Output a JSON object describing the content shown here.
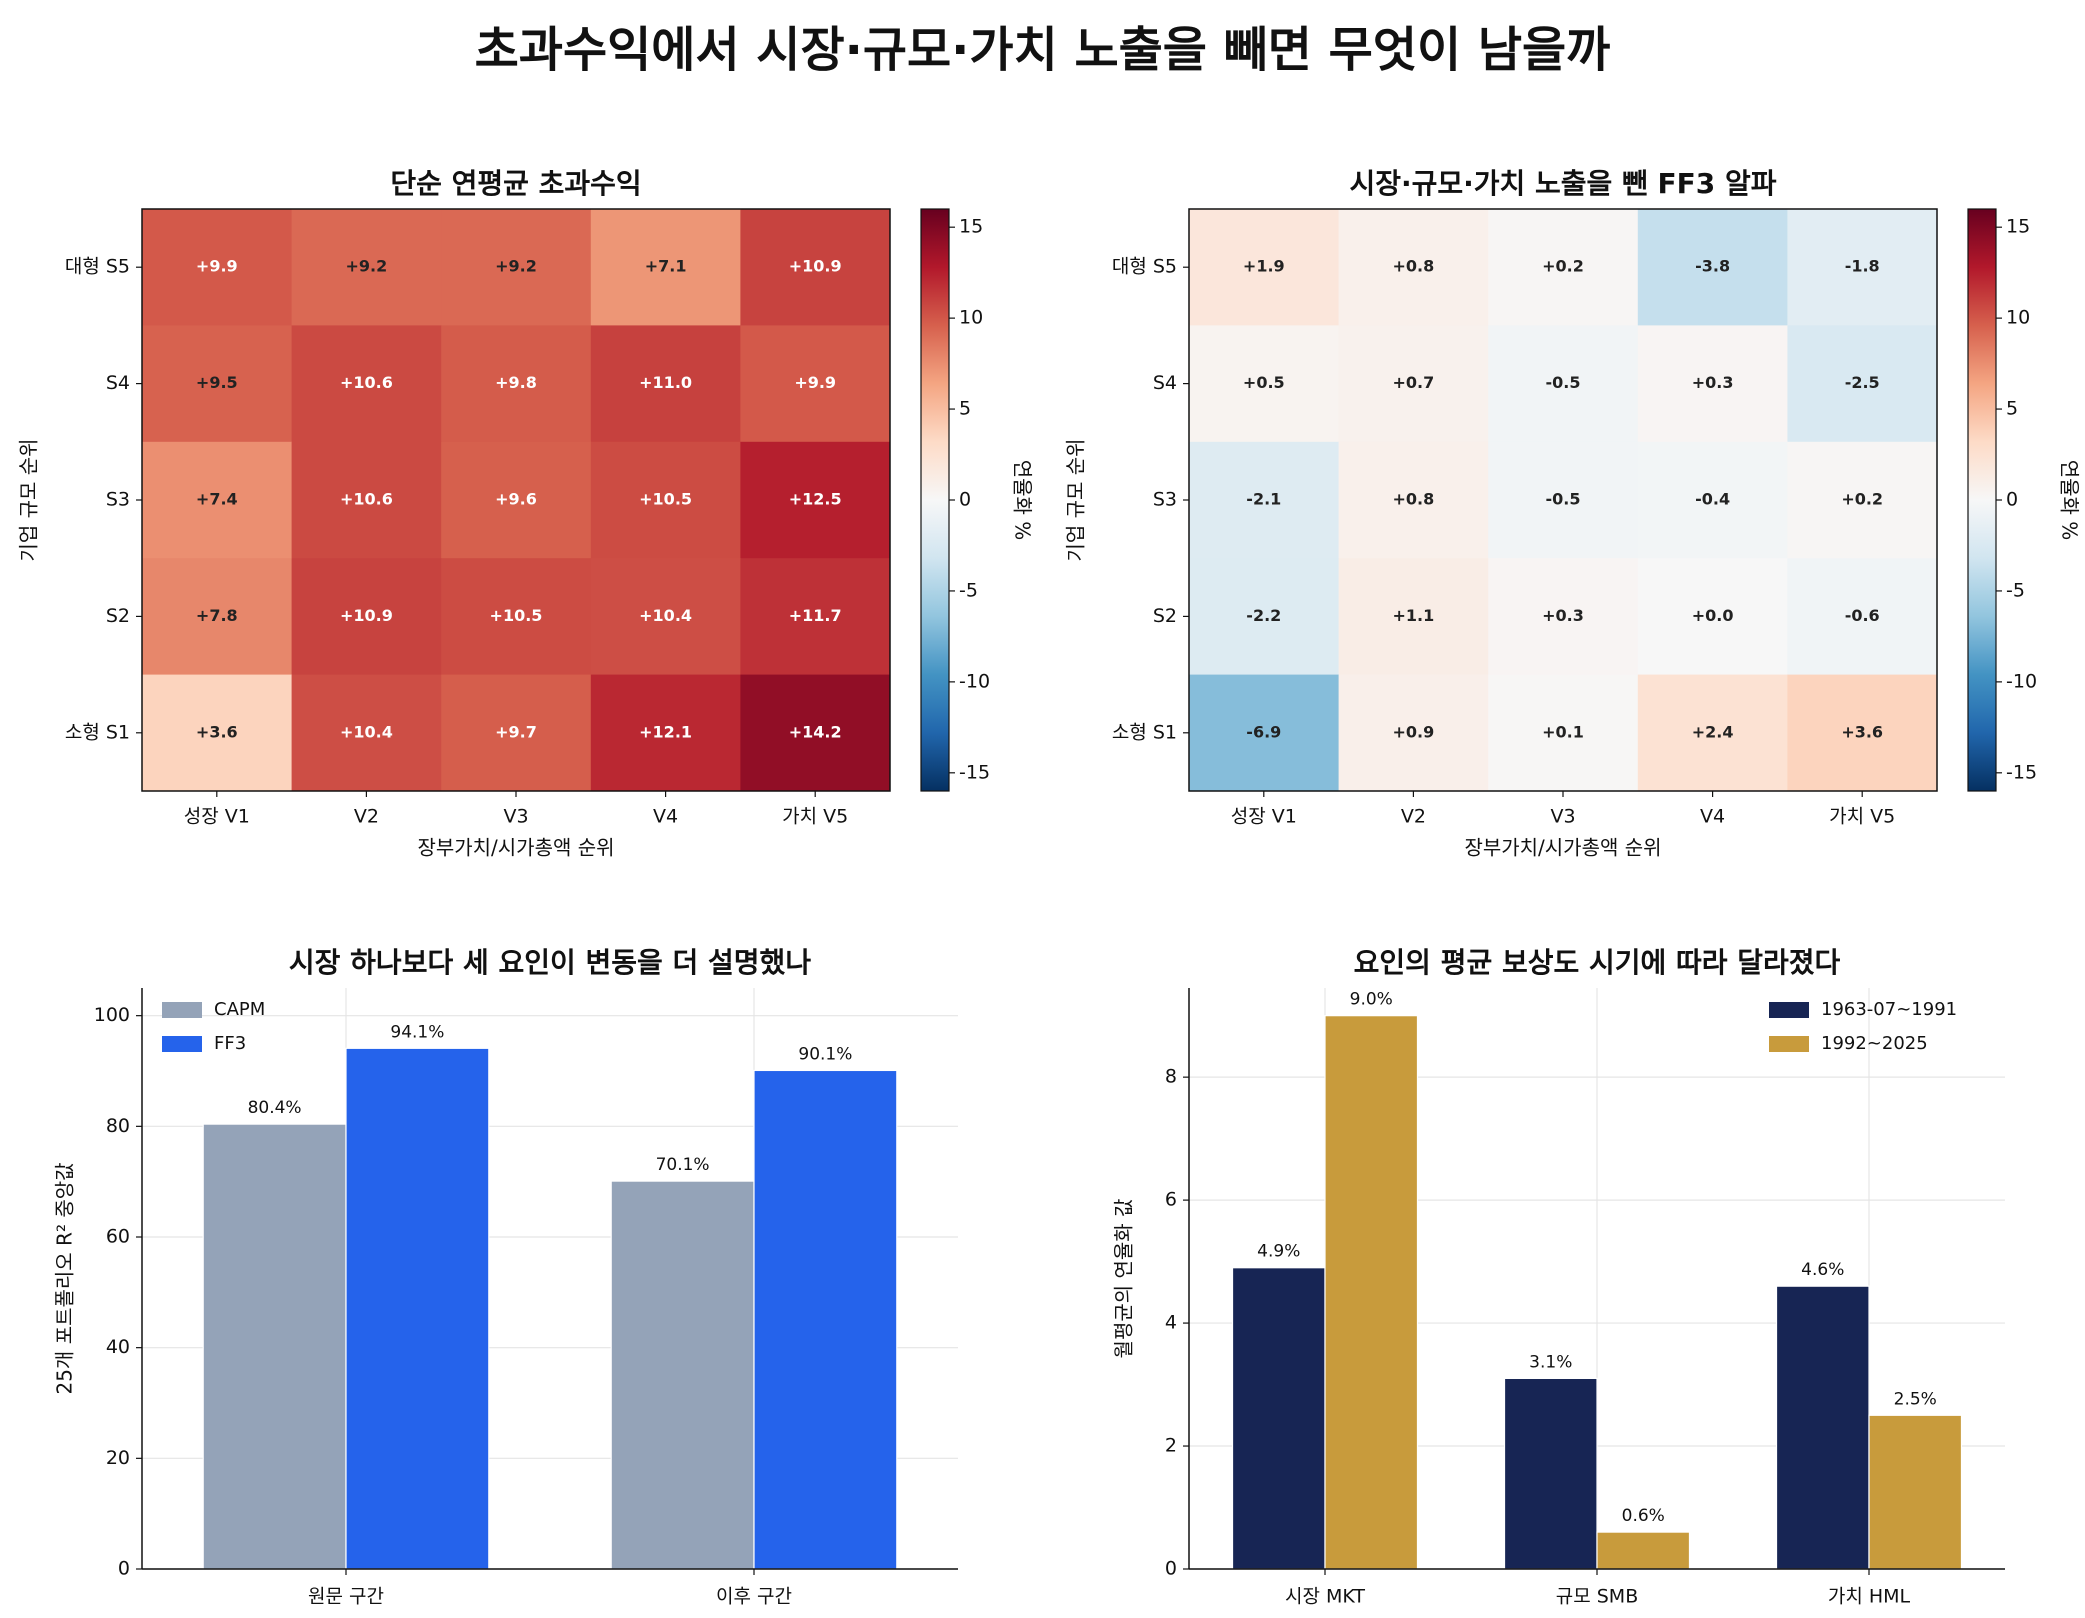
{
  "title": "초과수익에서 시장·규모·가치 노출을 빼면 무엇이 남을까",
  "chart_data": [
    {
      "type": "heatmap",
      "title": "단순 연평균 초과수익",
      "xlabel": "장부가치/시가총액 순위",
      "ylabel": "기업 규모 순위",
      "colorbar_label": "연율화 %",
      "colorbar_ticks": [
        "15",
        "10",
        "5",
        "0",
        "-5",
        "-10",
        "-15"
      ],
      "vlim": [
        -16,
        16
      ],
      "x_categories": [
        "성장 V1",
        "V2",
        "V3",
        "V4",
        "가치 V5"
      ],
      "y_categories": [
        "대형 S5",
        "S4",
        "S3",
        "S2",
        "소형 S1"
      ],
      "values": [
        [
          9.9,
          9.2,
          9.2,
          7.1,
          10.9
        ],
        [
          9.5,
          10.6,
          9.8,
          11.0,
          9.9
        ],
        [
          7.4,
          10.6,
          9.6,
          10.5,
          12.5
        ],
        [
          7.8,
          10.9,
          10.5,
          10.4,
          11.7
        ],
        [
          3.6,
          10.4,
          9.7,
          12.1,
          14.2
        ]
      ],
      "labels": [
        [
          "+9.9",
          "+9.2",
          "+9.2",
          "+7.1",
          "+10.9"
        ],
        [
          "+9.5",
          "+10.6",
          "+9.8",
          "+11.0",
          "+9.9"
        ],
        [
          "+7.4",
          "+10.6",
          "+9.6",
          "+10.5",
          "+12.5"
        ],
        [
          "+7.8",
          "+10.9",
          "+10.5",
          "+10.4",
          "+11.7"
        ],
        [
          "+3.6",
          "+10.4",
          "+9.7",
          "+12.1",
          "+14.2"
        ]
      ]
    },
    {
      "type": "heatmap",
      "title": "시장·규모·가치 노출을 뺀 FF3 알파",
      "xlabel": "장부가치/시가총액 순위",
      "ylabel": "기업 규모 순위",
      "colorbar_label": "연율화 %",
      "colorbar_ticks": [
        "15",
        "10",
        "5",
        "0",
        "-5",
        "-10",
        "-15"
      ],
      "vlim": [
        -16,
        16
      ],
      "x_categories": [
        "성장 V1",
        "V2",
        "V3",
        "V4",
        "가치 V5"
      ],
      "y_categories": [
        "대형 S5",
        "S4",
        "S3",
        "S2",
        "소형 S1"
      ],
      "values": [
        [
          1.9,
          0.8,
          0.2,
          -3.8,
          -1.8
        ],
        [
          0.5,
          0.7,
          -0.5,
          0.3,
          -2.5
        ],
        [
          -2.1,
          0.8,
          -0.5,
          -0.4,
          0.2
        ],
        [
          -2.2,
          1.1,
          0.3,
          0.0,
          -0.6
        ],
        [
          -6.9,
          0.9,
          0.1,
          2.4,
          3.6
        ]
      ],
      "labels": [
        [
          "+1.9",
          "+0.8",
          "+0.2",
          "-3.8",
          "-1.8"
        ],
        [
          "+0.5",
          "+0.7",
          "-0.5",
          "+0.3",
          "-2.5"
        ],
        [
          "-2.1",
          "+0.8",
          "-0.5",
          "-0.4",
          "+0.2"
        ],
        [
          "-2.2",
          "+1.1",
          "+0.3",
          "+0.0",
          "-0.6"
        ],
        [
          "-6.9",
          "+0.9",
          "+0.1",
          "+2.4",
          "+3.6"
        ]
      ]
    },
    {
      "type": "bar",
      "title": "시장 하나보다 세 요인이 변동을 더 설명했나",
      "xlabel": "",
      "ylabel": "25개 포트폴리오 R² 중앙값",
      "ylim": [
        0,
        105
      ],
      "yticks": [
        "0",
        "20",
        "40",
        "60",
        "80",
        "100"
      ],
      "categories": [
        "원문 구간",
        "이후 구간"
      ],
      "legend_position": "top-left",
      "grid": true,
      "series": [
        {
          "name": "CAPM",
          "color": "#94a3b8",
          "values": [
            80.4,
            70.1
          ],
          "labels": [
            "80.4%",
            "70.1%"
          ]
        },
        {
          "name": "FF3",
          "color": "#2563eb",
          "values": [
            94.1,
            90.1
          ],
          "labels": [
            "94.1%",
            "90.1%"
          ]
        }
      ]
    },
    {
      "type": "bar",
      "title": "요인의 평균 보상도 시기에 따라 달라졌다",
      "xlabel": "",
      "ylabel": "월평균의 연율화 값",
      "ylim": [
        0,
        9.45
      ],
      "yticks": [
        "0",
        "2",
        "4",
        "6",
        "8"
      ],
      "categories": [
        "시장 MKT",
        "규모 SMB",
        "가치 HML"
      ],
      "legend_position": "top-right",
      "grid": true,
      "series": [
        {
          "name": "1963-07~1991",
          "color": "#172554",
          "values": [
            4.9,
            3.1,
            4.6
          ],
          "labels": [
            "4.9%",
            "3.1%",
            "4.6%"
          ]
        },
        {
          "name": "1992~2025",
          "color": "#c89b3c",
          "values": [
            9.0,
            0.6,
            2.5
          ],
          "labels": [
            "9.0%",
            "0.6%",
            "2.5%"
          ]
        }
      ]
    }
  ]
}
